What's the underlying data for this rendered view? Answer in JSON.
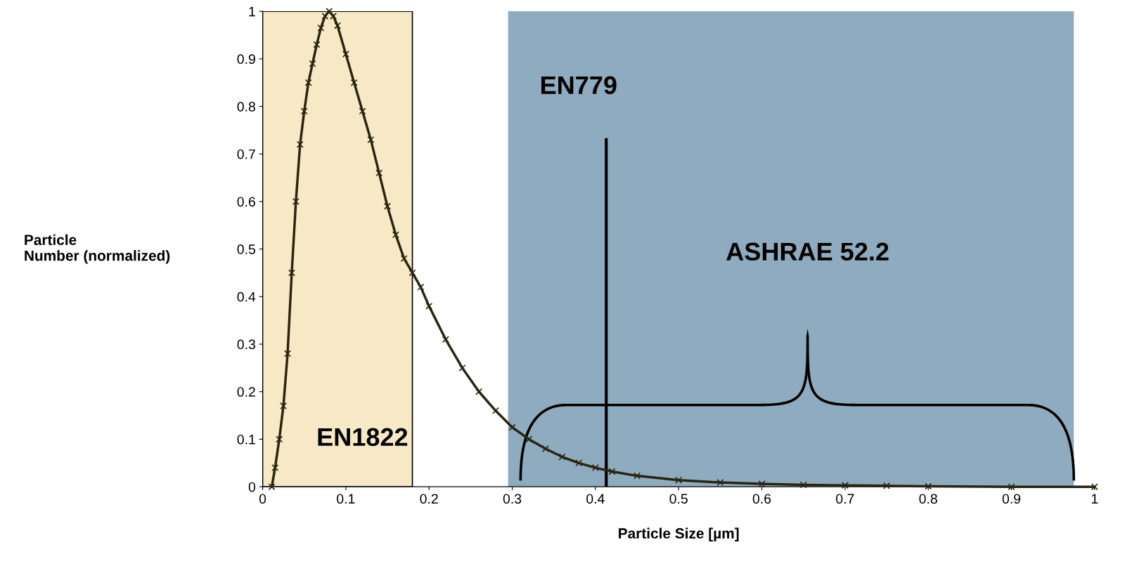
{
  "chart_data": {
    "type": "line",
    "xlabel": "Particle Size [µm]",
    "ylabel": "Particle\nNumber (normalized)",
    "x": [
      0.011,
      0.015,
      0.02,
      0.025,
      0.03,
      0.035,
      0.04,
      0.045,
      0.05,
      0.055,
      0.06,
      0.065,
      0.07,
      0.075,
      0.08,
      0.085,
      0.09,
      0.1,
      0.11,
      0.12,
      0.13,
      0.14,
      0.15,
      0.16,
      0.17,
      0.18,
      0.19,
      0.2,
      0.22,
      0.24,
      0.26,
      0.28,
      0.3,
      0.32,
      0.34,
      0.36,
      0.38,
      0.4,
      0.42,
      0.45,
      0.5,
      0.55,
      0.6,
      0.65,
      0.7,
      0.75,
      0.8,
      0.9,
      1
    ],
    "series": [
      {
        "color": "#2b2410",
        "values": [
          0,
          0.04,
          0.1,
          0.17,
          0.28,
          0.45,
          0.6,
          0.72,
          0.79,
          0.85,
          0.89,
          0.93,
          0.965,
          0.99,
          1.0,
          0.99,
          0.97,
          0.91,
          0.85,
          0.79,
          0.73,
          0.66,
          0.59,
          0.53,
          0.48,
          0.45,
          0.42,
          0.38,
          0.31,
          0.25,
          0.2,
          0.16,
          0.125,
          0.1,
          0.08,
          0.063,
          0.05,
          0.04,
          0.032,
          0.023,
          0.014,
          0.009,
          0.006,
          0.004,
          0.003,
          0.002,
          0.001,
          0,
          0
        ]
      }
    ],
    "marker": "cross",
    "line_style": "solid",
    "xlim": [
      0,
      1
    ],
    "ylim": [
      0,
      1
    ],
    "xticks": [
      0,
      0.1,
      0.2,
      0.3,
      0.4,
      0.5,
      0.6,
      0.7,
      0.8,
      0.9,
      1
    ],
    "yticks": [
      0,
      0.1,
      0.2,
      0.3,
      0.4,
      0.5,
      0.6,
      0.7,
      0.8,
      0.9,
      1
    ],
    "bands": [
      {
        "axis": "x",
        "from": 0,
        "to": 0.18,
        "color": "#f8e9c6",
        "label": "EN1822"
      },
      {
        "axis": "x",
        "from": 0.295,
        "to": 0.975,
        "color": "#8eabbf",
        "label": "ASHRAE 52.2"
      }
    ],
    "ref_lines": [
      {
        "axis": "x",
        "value": 0.413,
        "label": "EN779",
        "color": "#000000",
        "line_style": "solid"
      }
    ],
    "grid": false,
    "legend": false
  }
}
